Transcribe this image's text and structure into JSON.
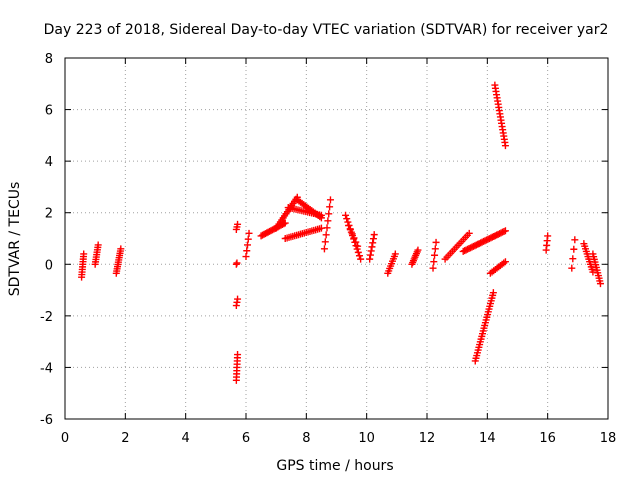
{
  "chart_data": {
    "type": "scatter",
    "title": "Day 223 of 2018, Sidereal Day-to-day VTEC variation (SDTVAR) for receiver yar2",
    "xlabel": "GPS time / hours",
    "ylabel": "SDTVAR / TECUs",
    "xlim": [
      0,
      18
    ],
    "ylim": [
      -6,
      8
    ],
    "grid": true,
    "marker": "+",
    "color": "#ff0000",
    "x_ticks": [
      {
        "value": 0,
        "label": "0"
      },
      {
        "value": 2,
        "label": "2"
      },
      {
        "value": 4,
        "label": "4"
      },
      {
        "value": 6,
        "label": "6"
      },
      {
        "value": 8,
        "label": "8"
      },
      {
        "value": 10,
        "label": "10"
      },
      {
        "value": 12,
        "label": "12"
      },
      {
        "value": 14,
        "label": "14"
      },
      {
        "value": 16,
        "label": "16"
      },
      {
        "value": 18,
        "label": "18"
      }
    ],
    "y_ticks": [
      {
        "value": -6,
        "label": "-6"
      },
      {
        "value": -4,
        "label": "-4"
      },
      {
        "value": -2,
        "label": "-2"
      },
      {
        "value": 0,
        "label": "0"
      },
      {
        "value": 2,
        "label": "2"
      },
      {
        "value": 4,
        "label": "4"
      },
      {
        "value": 6,
        "label": "6"
      },
      {
        "value": 8,
        "label": "8"
      }
    ],
    "segments": [
      {
        "x0": 0.55,
        "x1": 0.62,
        "y0": -0.5,
        "y1": 0.4,
        "n": 10
      },
      {
        "x0": 1.0,
        "x1": 1.1,
        "y0": 0.0,
        "y1": 0.75,
        "n": 9
      },
      {
        "x0": 1.7,
        "x1": 1.85,
        "y0": -0.35,
        "y1": 0.6,
        "n": 12
      },
      {
        "x0": 5.68,
        "x1": 5.72,
        "y0": -4.5,
        "y1": -3.5,
        "n": 9
      },
      {
        "x0": 5.68,
        "x1": 5.72,
        "y0": -1.6,
        "y1": -1.35,
        "n": 3
      },
      {
        "x0": 5.68,
        "x1": 5.7,
        "y0": 0.0,
        "y1": 0.05,
        "n": 2
      },
      {
        "x0": 5.68,
        "x1": 5.72,
        "y0": 1.35,
        "y1": 1.55,
        "n": 3
      },
      {
        "x0": 6.0,
        "x1": 6.1,
        "y0": 0.3,
        "y1": 1.2,
        "n": 5
      },
      {
        "x0": 6.5,
        "x1": 7.3,
        "y0": 1.1,
        "y1": 1.6,
        "n": 18
      },
      {
        "x0": 7.0,
        "x1": 7.7,
        "y0": 1.4,
        "y1": 2.6,
        "n": 16
      },
      {
        "x0": 7.3,
        "x1": 8.5,
        "y0": 1.0,
        "y1": 1.4,
        "n": 20
      },
      {
        "x0": 7.7,
        "x1": 8.5,
        "y0": 2.5,
        "y1": 1.8,
        "n": 16
      },
      {
        "x0": 7.4,
        "x1": 8.5,
        "y0": 2.2,
        "y1": 1.9,
        "n": 18
      },
      {
        "x0": 8.6,
        "x1": 8.8,
        "y0": 0.6,
        "y1": 2.5,
        "n": 8
      },
      {
        "x0": 9.3,
        "x1": 9.8,
        "y0": 1.9,
        "y1": 0.2,
        "n": 14
      },
      {
        "x0": 9.4,
        "x1": 9.7,
        "y0": 1.5,
        "y1": 0.7,
        "n": 6
      },
      {
        "x0": 10.1,
        "x1": 10.25,
        "y0": 0.2,
        "y1": 1.15,
        "n": 7
      },
      {
        "x0": 10.7,
        "x1": 10.95,
        "y0": -0.35,
        "y1": 0.4,
        "n": 9
      },
      {
        "x0": 11.5,
        "x1": 11.7,
        "y0": 0.0,
        "y1": 0.55,
        "n": 9
      },
      {
        "x0": 12.2,
        "x1": 12.3,
        "y0": -0.15,
        "y1": 0.85,
        "n": 5
      },
      {
        "x0": 12.6,
        "x1": 13.4,
        "y0": 0.2,
        "y1": 1.2,
        "n": 14
      },
      {
        "x0": 13.2,
        "x1": 14.6,
        "y0": 0.5,
        "y1": 1.3,
        "n": 30
      },
      {
        "x0": 14.1,
        "x1": 14.6,
        "y0": -0.35,
        "y1": 0.1,
        "n": 10
      },
      {
        "x0": 13.6,
        "x1": 14.2,
        "y0": -3.75,
        "y1": -1.1,
        "n": 26
      },
      {
        "x0": 14.25,
        "x1": 14.6,
        "y0": 6.95,
        "y1": 4.6,
        "n": 20
      },
      {
        "x0": 15.95,
        "x1": 16.0,
        "y0": 0.55,
        "y1": 1.1,
        "n": 4
      },
      {
        "x0": 16.8,
        "x1": 16.9,
        "y0": -0.15,
        "y1": 0.95,
        "n": 4
      },
      {
        "x0": 17.2,
        "x1": 17.5,
        "y0": 0.8,
        "y1": -0.3,
        "n": 12
      },
      {
        "x0": 17.5,
        "x1": 17.75,
        "y0": 0.4,
        "y1": -0.75,
        "n": 12
      }
    ]
  }
}
